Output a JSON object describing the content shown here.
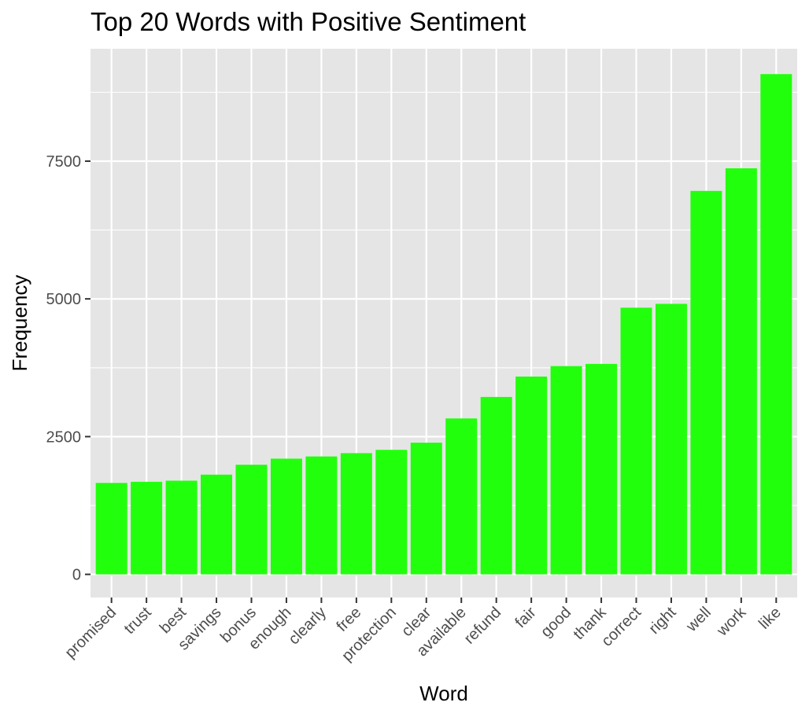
{
  "chart_data": {
    "type": "bar",
    "title": "Top 20 Words with Positive Sentiment",
    "xlabel": "Word",
    "ylabel": "Frequency",
    "categories": [
      "promised",
      "trust",
      "best",
      "savings",
      "bonus",
      "enough",
      "clearly",
      "free",
      "protection",
      "clear",
      "available",
      "refund",
      "fair",
      "good",
      "thank",
      "correct",
      "right",
      "well",
      "work",
      "like"
    ],
    "values": [
      1660,
      1680,
      1700,
      1810,
      1990,
      2100,
      2140,
      2200,
      2260,
      2390,
      2830,
      3220,
      3590,
      3780,
      3820,
      4840,
      4910,
      6960,
      7370,
      9080
    ],
    "ylim": [
      -420,
      9540
    ],
    "yticks": [
      0,
      2500,
      5000,
      7500
    ],
    "ytick_labels": [
      "0",
      "2500",
      "5000",
      "7500"
    ],
    "grid": true,
    "colors": {
      "bar": "#22ff0d",
      "panel": "#e5e5e5",
      "grid": "#ffffff",
      "tick_text": "#4d4d4d",
      "tick_mark": "#333333"
    }
  }
}
